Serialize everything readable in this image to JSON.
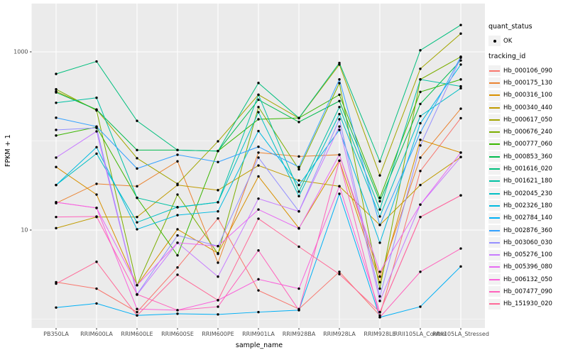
{
  "chart_data": {
    "type": "line",
    "xlabel": "sample_name",
    "ylabel": "FPKM + 1",
    "y_scale": "log10",
    "y_ticks": [
      10,
      1000
    ],
    "y_minor": [
      1,
      100
    ],
    "ylim_px_note": "log scale, 1 decade = 125.5px",
    "panel_bg": "#EBEBEB",
    "grid_color": "#FFFFFF",
    "point_color": "#000000",
    "axis_text_color": "#4D4D4D",
    "categories": [
      "PB350LA",
      "RRIM600LA",
      "RRIM600LE",
      "RRIM600SE",
      "RRIM600PE",
      "RRIM901LA",
      "RRIM928BA",
      "RRIM928LA",
      "RRIM928LE",
      "RRII105LA_Control",
      "RRII105LA_Stressed"
    ],
    "series": [
      {
        "name": "Hb_000106_090",
        "color": "#F8766D",
        "values": [
          2.6,
          2.2,
          1.2,
          3.8,
          13.5,
          2.1,
          1.3,
          3.4,
          1.1,
          46,
          180
        ]
      },
      {
        "name": "Hb_000175_130",
        "color": "#EA8331",
        "values": [
          20,
          33,
          31,
          59,
          4.3,
          74,
          67,
          70,
          3.0,
          65,
          230
        ]
      },
      {
        "name": "Hb_000316_100",
        "color": "#D89000",
        "values": [
          51,
          25,
          2.4,
          10.2,
          5.5,
          40,
          10.5,
          60,
          2.6,
          103,
          74
        ]
      },
      {
        "name": "Hb_000340_440",
        "color": "#C09B00",
        "values": [
          10.5,
          14,
          14,
          32,
          28,
          53,
          36,
          31,
          11.4,
          32,
          66
        ]
      },
      {
        "name": "Hb_000617_050",
        "color": "#A3A500",
        "values": [
          360,
          225,
          64,
          33,
          99,
          330,
          180,
          720,
          41,
          645,
          1600
        ]
      },
      {
        "name": "Hb_000676_240",
        "color": "#7CAE00",
        "values": [
          380,
          220,
          2.4,
          25,
          5.4,
          240,
          48,
          445,
          2.2,
          490,
          880
        ]
      },
      {
        "name": "Hb_000777_060",
        "color": "#39B600",
        "values": [
          115,
          143,
          23,
          5.2,
          77,
          175,
          181,
          330,
          23,
          355,
          490
        ]
      },
      {
        "name": "Hb_000853_360",
        "color": "#00BB4E",
        "values": [
          350,
          225,
          79,
          79,
          77,
          290,
          163,
          280,
          21,
          260,
          800
        ]
      },
      {
        "name": "Hb_001616_020",
        "color": "#00BF7D",
        "values": [
          565,
          780,
          168,
          79,
          77,
          447,
          181,
          750,
          59,
          1040,
          2000
        ]
      },
      {
        "name": "Hb_001621_180",
        "color": "#00C1A3",
        "values": [
          268,
          305,
          23,
          18,
          20.5,
          330,
          27,
          240,
          17,
          490,
          410
        ]
      },
      {
        "name": "Hb_002045_230",
        "color": "#00BFC4",
        "values": [
          32,
          72,
          12.2,
          18.1,
          20.5,
          210,
          24,
          200,
          14.2,
          190,
          390
        ]
      },
      {
        "name": "Hb_002326_180",
        "color": "#00BAE0",
        "values": [
          32,
          85,
          10.2,
          14.7,
          16.2,
          129,
          32,
          133,
          7.2,
          158,
          720
        ]
      },
      {
        "name": "Hb_002784_140",
        "color": "#00B0F6",
        "values": [
          1.35,
          1.5,
          1.1,
          1.15,
          1.13,
          1.2,
          1.26,
          25.5,
          1.05,
          1.38,
          3.9
        ]
      },
      {
        "name": "Hb_002876_360",
        "color": "#35A2FF",
        "values": [
          182,
          145,
          49,
          70,
          58,
          86,
          51,
          490,
          11.4,
          124,
          880
        ]
      },
      {
        "name": "Hb_003060_030",
        "color": "#9590FF",
        "values": [
          133,
          140,
          1.9,
          8.7,
          6.6,
          65,
          16.2,
          175,
          1.8,
          89,
          860
        ]
      },
      {
        "name": "Hb_005276_100",
        "color": "#C77CFF",
        "values": [
          65,
          128,
          1.88,
          7.2,
          3.0,
          22.5,
          16.2,
          145,
          1.6,
          19.3,
          66
        ]
      },
      {
        "name": "Hb_005396_080",
        "color": "#E76BF3",
        "values": [
          20.5,
          17.7,
          2.4,
          7.2,
          6.6,
          17,
          10.4,
          70,
          3.4,
          19.3,
          74
        ]
      },
      {
        "name": "Hb_006132_050",
        "color": "#FA62DB",
        "values": [
          20.5,
          17.7,
          1.3,
          1.26,
          1.63,
          2.8,
          2.2,
          31,
          1.2,
          14,
          24.5
        ]
      },
      {
        "name": "Hb_007477_090",
        "color": "#FF62BC",
        "values": [
          14,
          14.2,
          1.9,
          1.26,
          1.38,
          5.9,
          1.26,
          60,
          1.05,
          3.4,
          6.2
        ]
      },
      {
        "name": "Hb_151930_020",
        "color": "#FF6A98",
        "values": [
          2.5,
          4.4,
          1.1,
          3.15,
          1.63,
          13.4,
          6.5,
          3.2,
          1.2,
          14,
          24.5
        ]
      }
    ]
  },
  "legend": {
    "quant_status": {
      "title": "quant_status",
      "items": [
        {
          "label": "OK",
          "symbol": "point"
        }
      ]
    },
    "tracking_id": {
      "title": "tracking_id"
    }
  }
}
